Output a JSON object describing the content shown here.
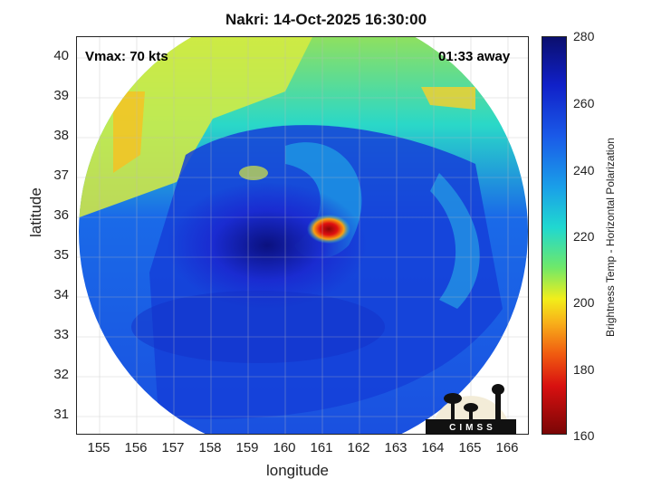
{
  "title": "Nakri: 14-Oct-2025 16:30:00",
  "vmax_label": "Vmax: 70 kts",
  "time_away_label": "01:33 away",
  "xlabel": "longitude",
  "ylabel": "latitude",
  "x_ticks": [
    "155",
    "156",
    "157",
    "158",
    "159",
    "160",
    "161",
    "162",
    "163",
    "164",
    "165",
    "166"
  ],
  "y_ticks": [
    "40",
    "39",
    "38",
    "37",
    "36",
    "35",
    "34",
    "33",
    "32",
    "31"
  ],
  "colorbar": {
    "label": "Brightness Temp - Horizontal Polarization",
    "ticks": [
      "280",
      "260",
      "240",
      "220",
      "200",
      "180",
      "160"
    ],
    "range": [
      160,
      280
    ]
  },
  "logo_text": "CIMSS",
  "map_data": {
    "type": "heatmap",
    "lon_range": [
      154.4,
      166.6
    ],
    "lat_range": [
      30.6,
      40.6
    ],
    "storm_center": {
      "lon": 160.0,
      "lat": 35.5
    },
    "coldest_core": {
      "lon": 161.3,
      "lat": 35.7
    }
  }
}
